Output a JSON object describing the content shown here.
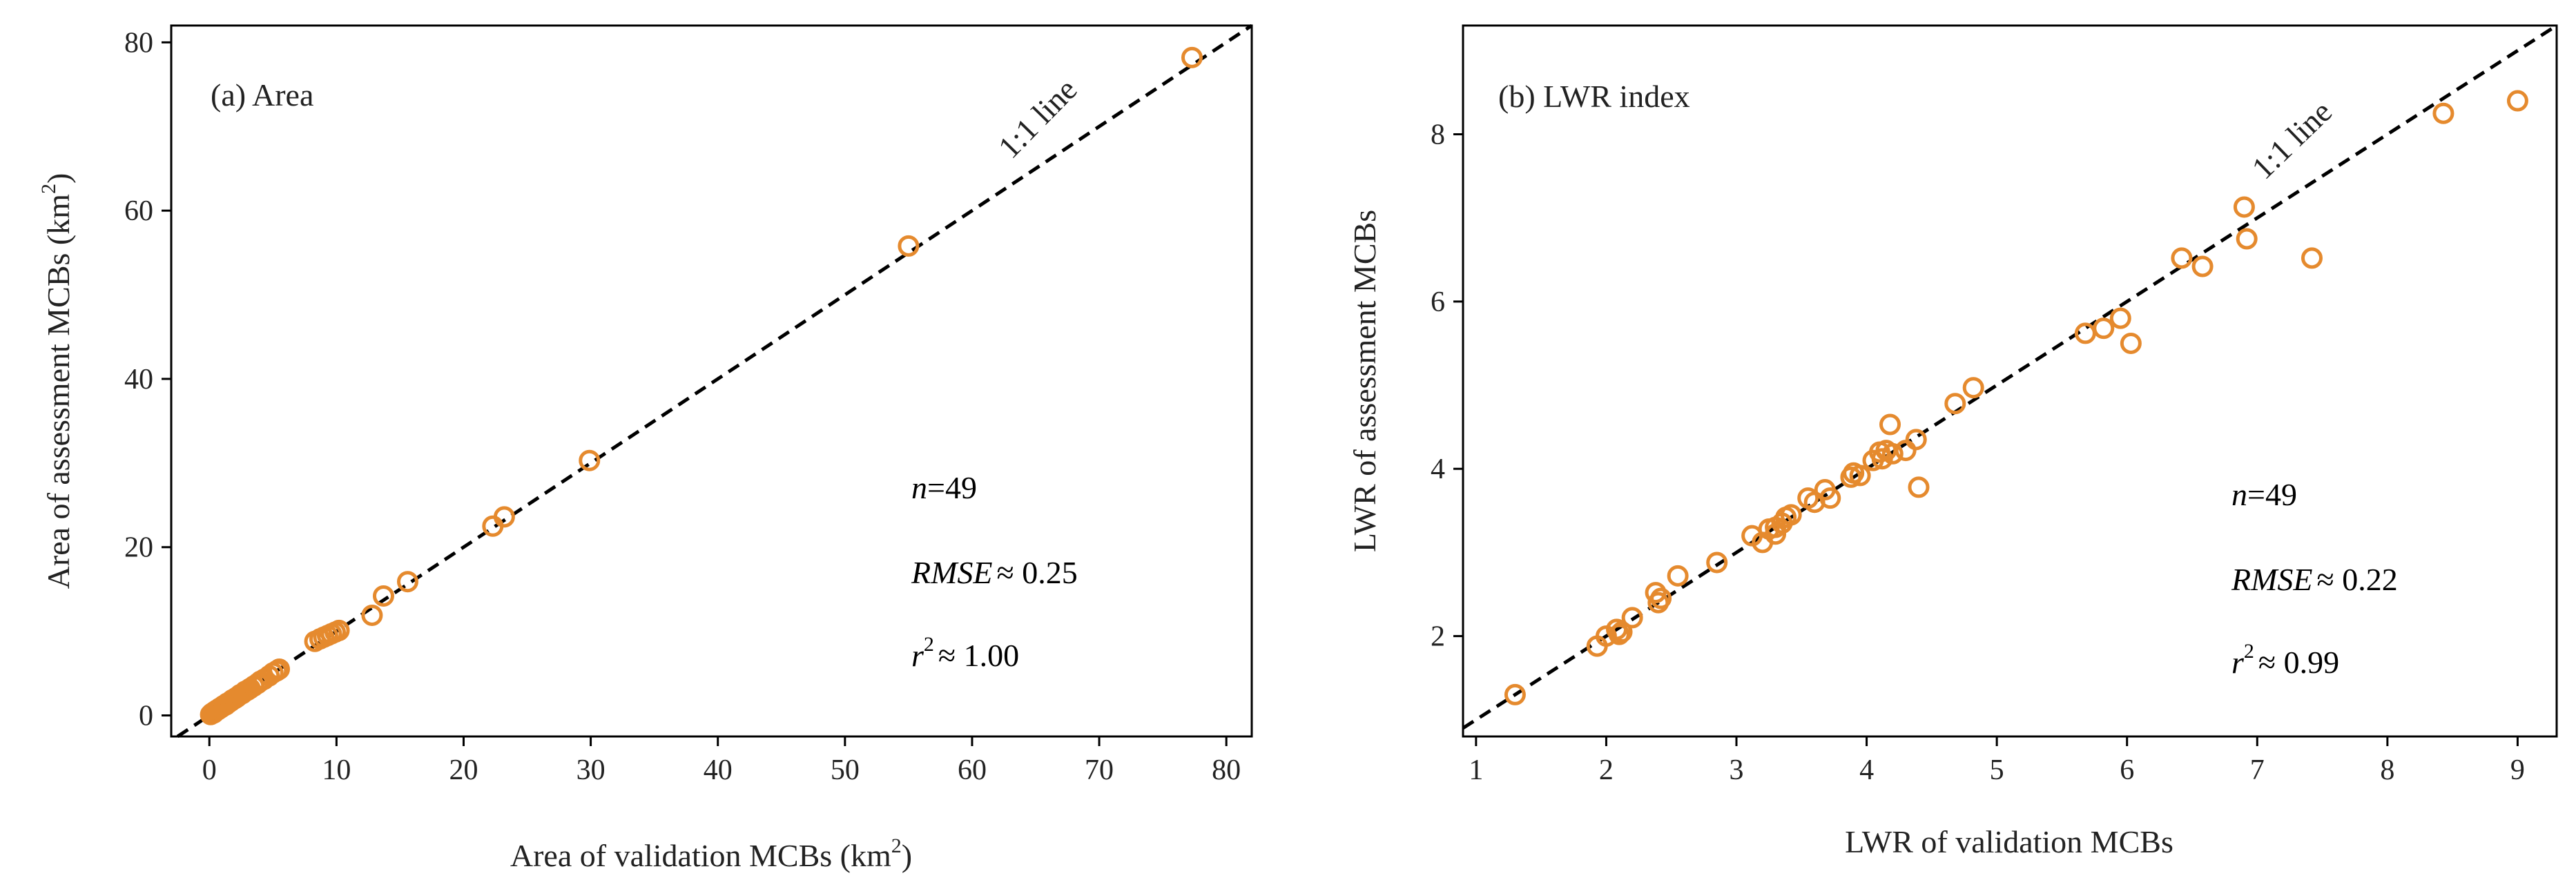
{
  "figure": {
    "style": {
      "marker_color": "#E58A2E",
      "line_color": "#000000",
      "text_color": "#222222",
      "background": "#ffffff"
    }
  },
  "chart_data": [
    {
      "type": "scatter",
      "panel_label": "(a) Area",
      "xlabel_main": "Area of validation MCBs (km",
      "xlabel_sup": "2",
      "xlabel_end": ")",
      "ylabel_main": "Area of assessment MCBs (km",
      "ylabel_sup": "2",
      "ylabel_end": ")",
      "xlim": [
        -3,
        82
      ],
      "ylim": [
        -2.5,
        82
      ],
      "xticks": [
        0,
        10,
        20,
        30,
        40,
        50,
        60,
        70,
        80
      ],
      "yticks": [
        0,
        20,
        40,
        60,
        80
      ],
      "xtick_labels": [
        "0",
        "10",
        "20",
        "30",
        "40",
        "50",
        "60",
        "70",
        "80"
      ],
      "ytick_labels": [
        "0",
        "20",
        "40",
        "60",
        "80"
      ],
      "identity_line_label": "1:1 line",
      "stats": {
        "n_symbol": "n",
        "n_value": "=49",
        "rmse_symbol": "RMSE",
        "rmse_value": "≈ 0.25",
        "r2_symbol": "r",
        "r2_sup": "2",
        "r2_value": "≈ 1.00"
      },
      "points": [
        [
          0.1,
          0.1
        ],
        [
          0.2,
          0.25
        ],
        [
          0.3,
          0.3
        ],
        [
          0.4,
          0.45
        ],
        [
          0.5,
          0.5
        ],
        [
          0.6,
          0.65
        ],
        [
          0.7,
          0.7
        ],
        [
          0.8,
          0.85
        ],
        [
          0.9,
          0.9
        ],
        [
          1.0,
          1.0
        ],
        [
          1.1,
          1.15
        ],
        [
          1.2,
          1.2
        ],
        [
          1.4,
          1.45
        ],
        [
          1.5,
          1.5
        ],
        [
          1.7,
          1.7
        ],
        [
          1.8,
          1.85
        ],
        [
          2.0,
          2.0
        ],
        [
          2.2,
          2.2
        ],
        [
          2.4,
          2.45
        ],
        [
          2.6,
          2.6
        ],
        [
          2.8,
          2.85
        ],
        [
          3.0,
          3.0
        ],
        [
          3.2,
          3.2
        ],
        [
          3.5,
          3.5
        ],
        [
          3.8,
          3.8
        ],
        [
          4.0,
          4.05
        ],
        [
          4.3,
          4.3
        ],
        [
          4.7,
          4.7
        ],
        [
          5.0,
          5.05
        ],
        [
          5.3,
          5.3
        ],
        [
          5.5,
          5.5
        ],
        [
          8.3,
          8.8
        ],
        [
          8.7,
          9.1
        ],
        [
          9.0,
          9.3
        ],
        [
          9.3,
          9.5
        ],
        [
          9.6,
          9.7
        ],
        [
          9.9,
          9.9
        ],
        [
          10.2,
          10.1
        ],
        [
          12.8,
          11.9
        ],
        [
          13.7,
          14.2
        ],
        [
          15.6,
          15.9
        ],
        [
          22.3,
          22.5
        ],
        [
          23.2,
          23.6
        ],
        [
          29.9,
          30.3
        ],
        [
          55.0,
          55.8
        ],
        [
          77.3,
          78.2
        ],
        [
          0.35,
          0.3
        ],
        [
          1.3,
          1.25
        ],
        [
          2.1,
          2.1
        ]
      ]
    },
    {
      "type": "scatter",
      "panel_label": "(b) LWR index",
      "xlabel": "LWR of validation MCBs",
      "ylabel": "LWR of assessment MCBs",
      "xlim": [
        0.9,
        9.3
      ],
      "ylim": [
        0.8,
        9.3
      ],
      "xticks": [
        1,
        2,
        3,
        4,
        5,
        6,
        7,
        8,
        9
      ],
      "yticks": [
        2,
        4,
        6,
        8
      ],
      "xtick_labels": [
        "1",
        "2",
        "3",
        "4",
        "5",
        "6",
        "7",
        "8",
        "9"
      ],
      "ytick_labels": [
        "2",
        "4",
        "6",
        "8"
      ],
      "identity_line_label": "1:1 line",
      "stats": {
        "n_symbol": "n",
        "n_value": "=49",
        "rmse_symbol": "RMSE",
        "rmse_value": "≈ 0.22",
        "r2_symbol": "r",
        "r2_sup": "2",
        "r2_value": "≈ 0.99"
      },
      "points": [
        [
          1.3,
          1.3
        ],
        [
          1.93,
          1.88
        ],
        [
          2.0,
          2.0
        ],
        [
          2.08,
          2.08
        ],
        [
          2.1,
          2.02
        ],
        [
          2.12,
          2.05
        ],
        [
          2.2,
          2.22
        ],
        [
          2.38,
          2.52
        ],
        [
          2.4,
          2.4
        ],
        [
          2.55,
          2.72
        ],
        [
          2.85,
          2.88
        ],
        [
          3.12,
          3.2
        ],
        [
          3.2,
          3.12
        ],
        [
          3.25,
          3.28
        ],
        [
          3.3,
          3.22
        ],
        [
          3.35,
          3.35
        ],
        [
          3.38,
          3.42
        ],
        [
          3.42,
          3.45
        ],
        [
          3.55,
          3.65
        ],
        [
          3.6,
          3.6
        ],
        [
          3.68,
          3.75
        ],
        [
          3.72,
          3.65
        ],
        [
          3.9,
          3.95
        ],
        [
          3.95,
          3.92
        ],
        [
          4.05,
          4.1
        ],
        [
          4.1,
          4.2
        ],
        [
          4.15,
          4.22
        ],
        [
          4.18,
          4.53
        ],
        [
          4.2,
          4.18
        ],
        [
          4.3,
          4.22
        ],
        [
          4.38,
          4.35
        ],
        [
          4.4,
          3.78
        ],
        [
          4.68,
          4.78
        ],
        [
          4.82,
          4.97
        ],
        [
          5.68,
          5.62
        ],
        [
          5.82,
          5.68
        ],
        [
          5.95,
          5.8
        ],
        [
          6.03,
          5.5
        ],
        [
          6.42,
          6.52
        ],
        [
          6.58,
          6.42
        ],
        [
          6.9,
          7.13
        ],
        [
          6.92,
          6.75
        ],
        [
          7.42,
          6.52
        ],
        [
          8.43,
          8.25
        ],
        [
          9.0,
          8.4
        ],
        [
          3.3,
          3.3
        ],
        [
          4.12,
          4.12
        ],
        [
          2.42,
          2.45
        ],
        [
          3.88,
          3.9
        ]
      ]
    }
  ]
}
